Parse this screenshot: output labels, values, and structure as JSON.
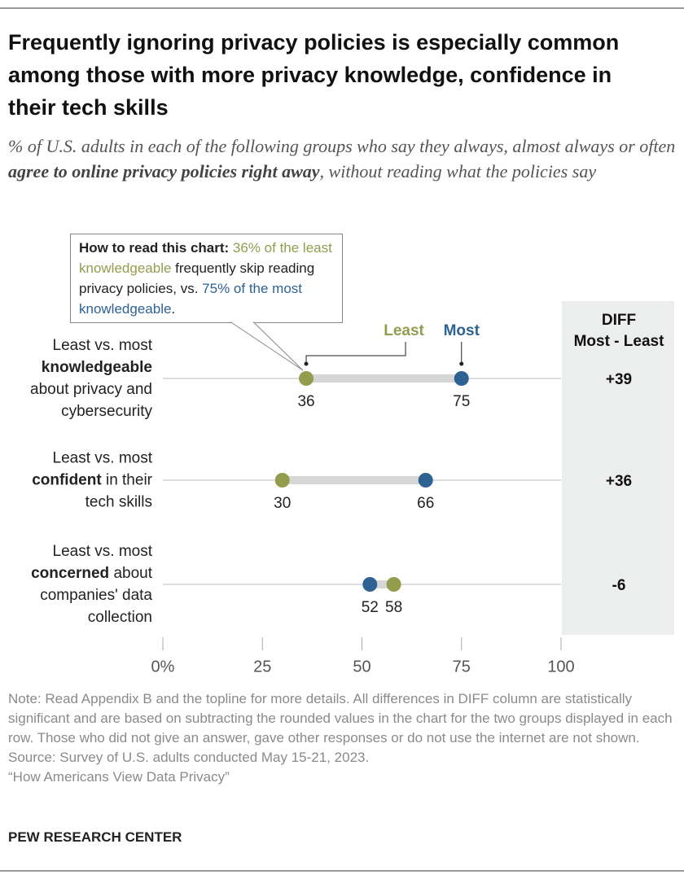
{
  "chart_data": {
    "type": "dumbbell",
    "title": "Frequently ignoring privacy policies is especially common among those with more privacy knowledge, confidence in their tech skills",
    "subtitle": [
      "% of U.S. adults in each of the following groups who say they always, almost always or often ",
      "agree to online privacy policies right away",
      ", without reading what the policies say"
    ],
    "annotation": [
      "How to read this chart: ",
      "36% of the least knowledgeable",
      " frequently skip reading privacy policies, vs. ",
      "75% of the most knowledgeable",
      "."
    ],
    "categories": [
      [
        "Least vs. most ",
        "knowledgeable",
        " about privacy and cybersecurity"
      ],
      [
        "Least vs. most ",
        "confident",
        " in their tech skills"
      ],
      [
        "Least vs. most ",
        "concerned",
        " about companies' data collection"
      ]
    ],
    "series": [
      {
        "name": "Least",
        "color": "#949c4e",
        "values": [
          36,
          30,
          58
        ]
      },
      {
        "name": "Most",
        "color": "#2e6293",
        "values": [
          75,
          66,
          52
        ]
      }
    ],
    "diff": {
      "title": "DIFF",
      "subtitle": "Most - Least",
      "labels": [
        "+39",
        "+36",
        "-6"
      ]
    },
    "xlim": [
      0,
      100
    ],
    "xticks": [
      {
        "value": 0,
        "label": "0%"
      },
      25,
      50,
      75,
      100
    ],
    "notes": [
      "Note: Read Appendix B and the topline for more details. All differences in DIFF column are statistically significant and are based on subtracting the rounded values in the chart for the two groups displayed in each row. Those who did not give an answer, gave other responses or do not use the internet are not shown.",
      "Source: Survey of U.S. adults conducted May 15-21, 2023.",
      "“How Americans View Data Privacy”"
    ],
    "source_org": "PEW RESEARCH CENTER"
  }
}
